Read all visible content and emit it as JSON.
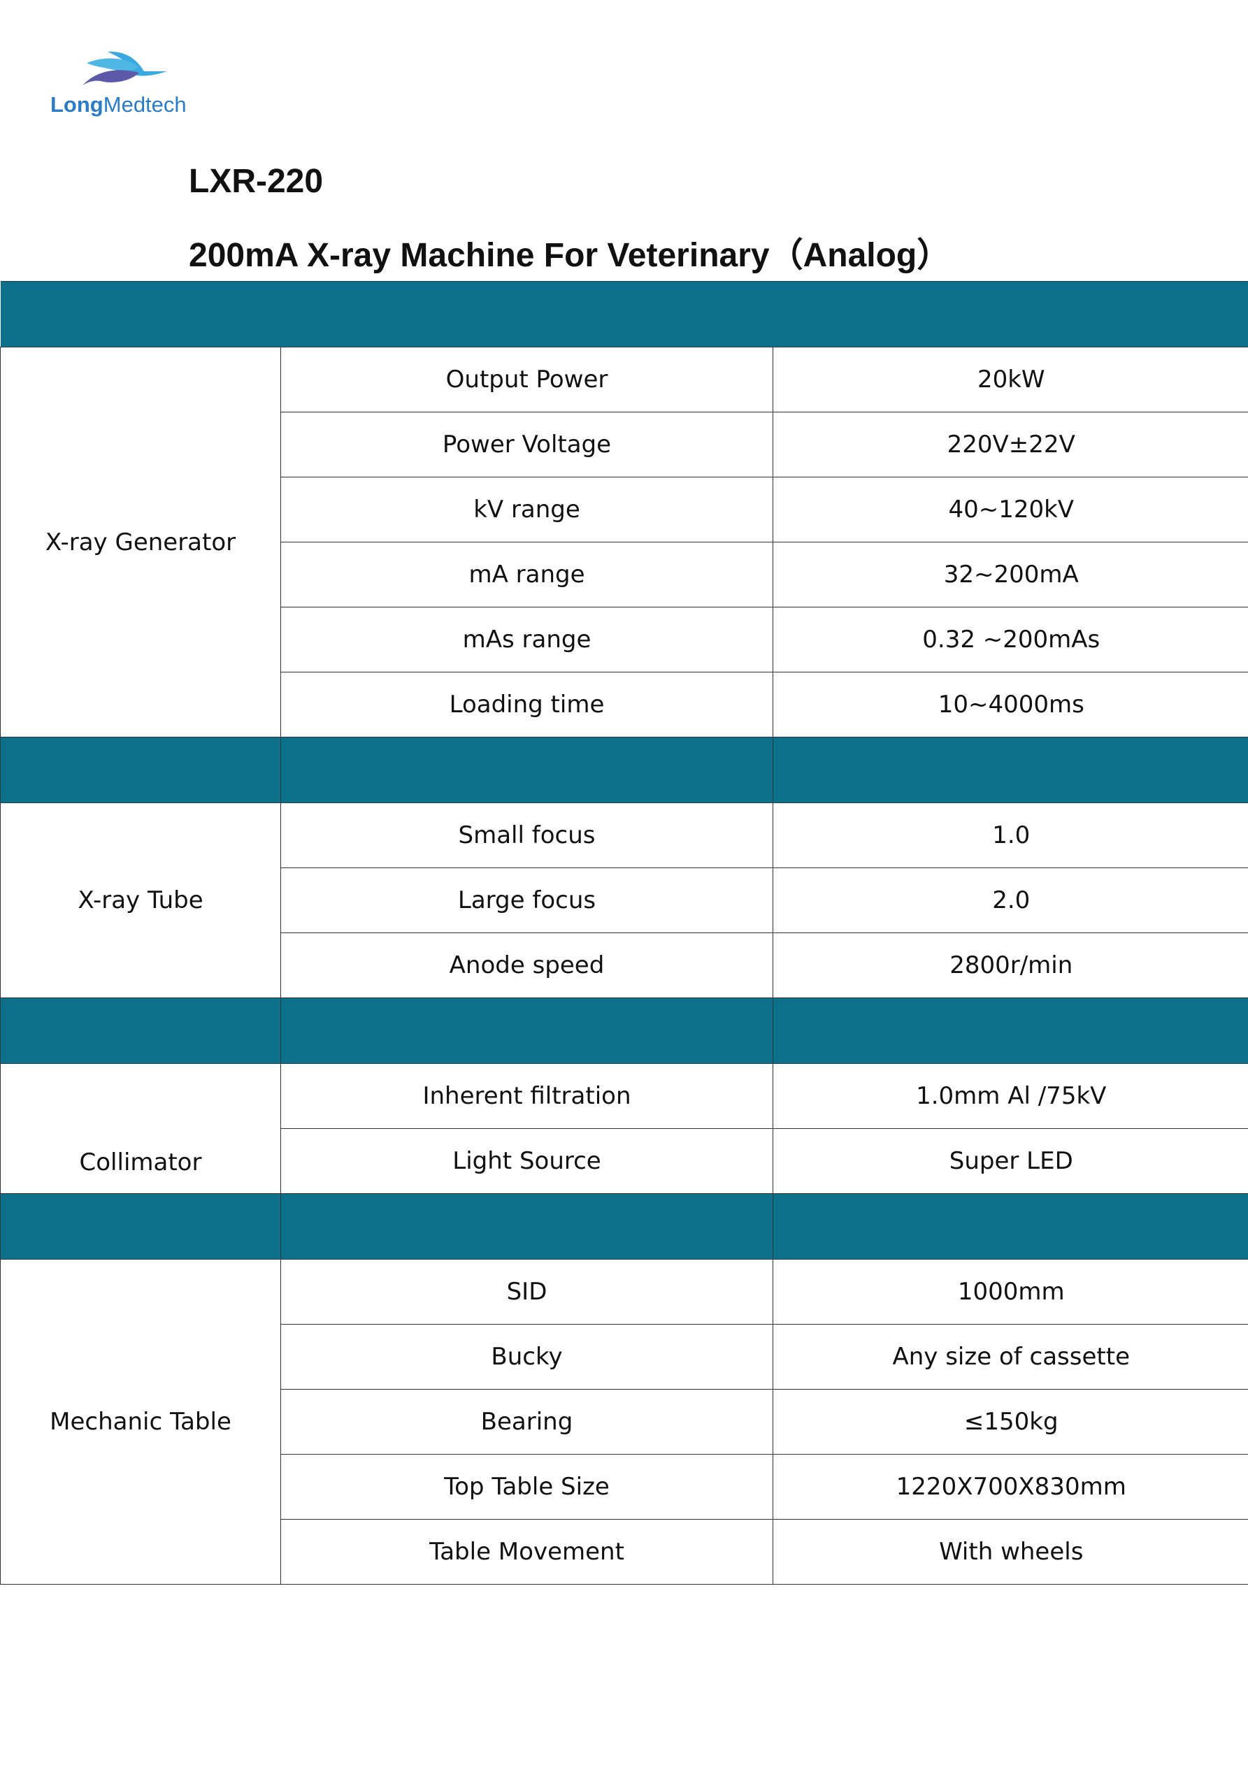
{
  "logo": {
    "bold": "Long",
    "rest": "Medtech",
    "colors": {
      "light": "#3aa9e0",
      "dark": "#5b59a8"
    }
  },
  "header": {
    "model": "LXR-220",
    "title": "200mA X-ray Machine For Veterinary（Analog）"
  },
  "colors": {
    "band": "#0c7089"
  },
  "sections": [
    {
      "category": "X-ray Generator",
      "rows": [
        {
          "param": "Output Power",
          "value": "20kW"
        },
        {
          "param": "Power Voltage",
          "value": "220V±22V"
        },
        {
          "param": "kV range",
          "value": "40~120kV"
        },
        {
          "param": "mA range",
          "value": "32~200mA"
        },
        {
          "param": "mAs range",
          "value": "0.32 ~200mAs"
        },
        {
          "param": "Loading time",
          "value": "10~4000ms"
        }
      ]
    },
    {
      "category": "X-ray Tube",
      "rows": [
        {
          "param": "Small focus",
          "value": "1.0"
        },
        {
          "param": "Large focus",
          "value": "2.0"
        },
        {
          "param": "Anode speed",
          "value": "2800r/min"
        }
      ]
    },
    {
      "category": "Collimator",
      "rows": [
        {
          "param": "Inherent filtration",
          "value": "1.0mm Al /75kV"
        },
        {
          "param": "Light Source",
          "value": "Super LED"
        }
      ]
    },
    {
      "category": "Mechanic Table",
      "rows": [
        {
          "param": "SID",
          "value": "1000mm"
        },
        {
          "param": "Bucky",
          "value": "Any size of cassette"
        },
        {
          "param": "Bearing",
          "value": "≤150kg"
        },
        {
          "param": "Top Table Size",
          "value": "1220X700X830mm"
        },
        {
          "param": "Table Movement",
          "value": "With wheels"
        }
      ]
    }
  ]
}
